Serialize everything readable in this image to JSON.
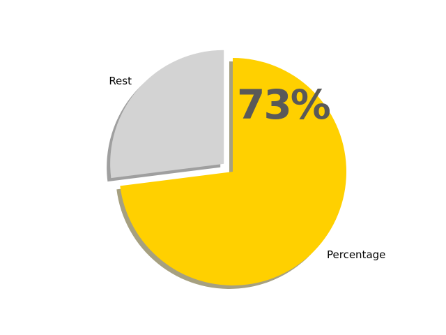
{
  "chart_data": {
    "type": "pie",
    "title": "",
    "slices": [
      {
        "label": "Percentage",
        "value": 73,
        "color": "#FFD000",
        "explode": 0,
        "shadow_color": "#A6A080"
      },
      {
        "label": "Rest",
        "value": 27,
        "color": "#D3D3D3",
        "explode": 0.105,
        "shadow_color": "#9F9F9F"
      }
    ],
    "start_angle": 90,
    "direction": "clockwise",
    "shadow": true,
    "shadow_offset": [
      -5,
      5
    ],
    "annotation": {
      "text": "73%",
      "color": "#595959"
    },
    "label_color": "#000000",
    "background": "#FFFFFF",
    "legend_position": "none",
    "grid": false
  }
}
